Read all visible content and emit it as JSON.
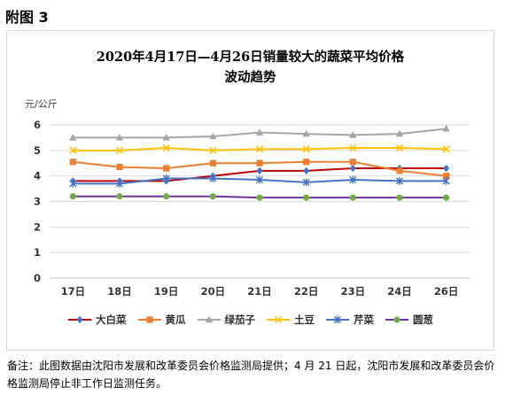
{
  "figure_label": "附图 3",
  "note": "备注：此图数据由沈阳市发展和改革委员会价格监测局提供；4 月 21 日起，沈阳市发展和改革委员会价格监测局停止非工作日监测任务。",
  "chart_data": {
    "type": "line",
    "title_line1": "2020年4月17日—4月26日销量较大的蔬菜平均价格",
    "title_line2": "波动趋势",
    "ylabel": "元/公斤",
    "categories": [
      "17日",
      "18日",
      "19日",
      "20日",
      "21日",
      "22日",
      "23日",
      "24日",
      "26日"
    ],
    "ylim": [
      0,
      6
    ],
    "yticks": [
      0,
      1,
      2,
      3,
      4,
      5,
      6
    ],
    "grid": true,
    "legend_position": "bottom",
    "series": [
      {
        "name": "大白菜",
        "color": "#C00000",
        "marker": "diamond",
        "markerColor": "#4472C4",
        "values": [
          3.8,
          3.8,
          3.8,
          4.0,
          4.2,
          4.2,
          4.3,
          4.3,
          4.3
        ]
      },
      {
        "name": "黄瓜",
        "color": "#ED7D31",
        "marker": "square",
        "markerColor": "#ED7D31",
        "values": [
          4.55,
          4.35,
          4.3,
          4.5,
          4.5,
          4.55,
          4.55,
          4.2,
          4.0
        ]
      },
      {
        "name": "绿茄子",
        "color": "#A5A5A5",
        "marker": "triangle",
        "markerColor": "#A5A5A5",
        "values": [
          5.5,
          5.5,
          5.5,
          5.55,
          5.7,
          5.65,
          5.6,
          5.65,
          5.85
        ]
      },
      {
        "name": "土豆",
        "color": "#FFC000",
        "marker": "x",
        "markerColor": "#FFC000",
        "values": [
          5.0,
          5.0,
          5.1,
          5.0,
          5.05,
          5.05,
          5.1,
          5.1,
          5.05
        ]
      },
      {
        "name": "芹菜",
        "color": "#4472C4",
        "marker": "star",
        "markerColor": "#4472C4",
        "values": [
          3.7,
          3.7,
          3.9,
          3.9,
          3.85,
          3.75,
          3.85,
          3.8,
          3.8
        ]
      },
      {
        "name": "圆葱",
        "color": "#7030A0",
        "marker": "circle",
        "markerColor": "#70AD47",
        "values": [
          3.2,
          3.2,
          3.2,
          3.2,
          3.15,
          3.15,
          3.15,
          3.15,
          3.15
        ]
      }
    ]
  }
}
